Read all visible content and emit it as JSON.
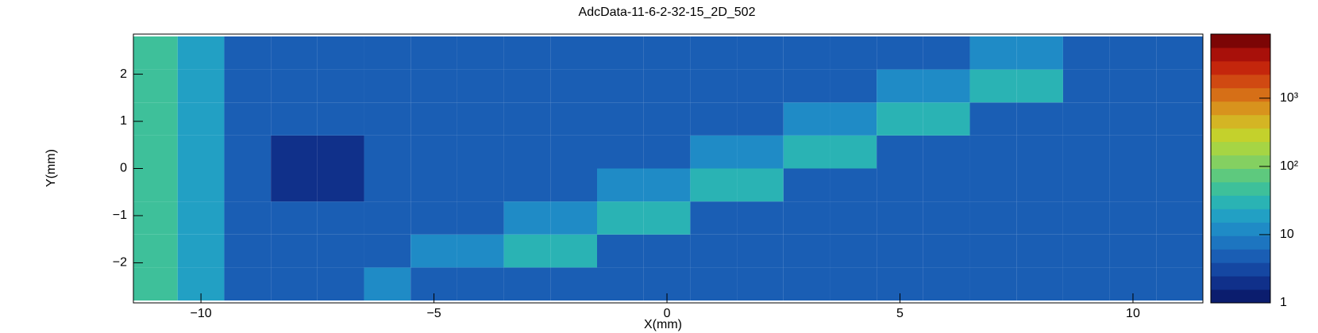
{
  "chart_data": {
    "type": "heatmap",
    "title": "AdcData-11-6-2-32-15_2D_502",
    "x_label": "X(mm)",
    "y_label": "Y(mm)",
    "xbins": [
      -11.5,
      -10.5,
      -9.5,
      -8.5,
      -7.5,
      -6.5,
      -5.5,
      -4.5,
      -3.5,
      -2.5,
      -1.5,
      -0.5,
      0.5,
      1.5,
      2.5,
      3.5,
      4.5,
      5.5,
      6.5,
      7.5,
      8.5,
      9.5,
      10.5,
      11.5
    ],
    "ybins": [
      -2.8,
      -2.1,
      -1.4,
      -0.7,
      0,
      0.7,
      1.4,
      2.1,
      2.8
    ],
    "z": [
      [
        40,
        22,
        6,
        6,
        6,
        15,
        6,
        6,
        6,
        6,
        6,
        6,
        6,
        6,
        6,
        6,
        6,
        6,
        6,
        6,
        6,
        6,
        6
      ],
      [
        40,
        22,
        6,
        6,
        6,
        6,
        15,
        15,
        30,
        30,
        6,
        6,
        6,
        6,
        6,
        6,
        6,
        6,
        6,
        6,
        6,
        6,
        6
      ],
      [
        40,
        22,
        6,
        4,
        4,
        6,
        6,
        6,
        15,
        15,
        30,
        30,
        6,
        6,
        6,
        6,
        6,
        6,
        6,
        6,
        6,
        6,
        6
      ],
      [
        40,
        22,
        6,
        2,
        2,
        6,
        6,
        6,
        6,
        6,
        15,
        15,
        30,
        30,
        6,
        6,
        6,
        6,
        6,
        6,
        6,
        6,
        6
      ],
      [
        40,
        22,
        6,
        2,
        2,
        6,
        6,
        6,
        6,
        6,
        6,
        6,
        15,
        15,
        30,
        30,
        6,
        6,
        6,
        6,
        6,
        6,
        6
      ],
      [
        40,
        22,
        6,
        4,
        4,
        6,
        6,
        6,
        6,
        6,
        6,
        6,
        6,
        6,
        15,
        15,
        30,
        30,
        6,
        6,
        6,
        6,
        6
      ],
      [
        40,
        22,
        6,
        6,
        6,
        6,
        6,
        6,
        6,
        6,
        6,
        6,
        6,
        6,
        6,
        6,
        15,
        15,
        30,
        30,
        6,
        6,
        6
      ],
      [
        40,
        22,
        6,
        6,
        6,
        6,
        6,
        6,
        6,
        6,
        6,
        6,
        6,
        6,
        6,
        6,
        6,
        6,
        15,
        15,
        6,
        6,
        6
      ]
    ],
    "xlim": [
      -11.45,
      11.5
    ],
    "ylim": [
      -2.85,
      2.85
    ],
    "xticks": [
      {
        "value": -10,
        "label": "−10"
      },
      {
        "value": -5,
        "label": "−5"
      },
      0,
      5,
      10
    ],
    "yticks": [
      {
        "value": -2,
        "label": "−2"
      },
      {
        "value": -1,
        "label": "−1"
      },
      0,
      1,
      2
    ],
    "zlim": [
      1,
      8700
    ],
    "zticks": [
      1,
      10,
      {
        "value": 100,
        "label": "10²"
      },
      {
        "value": 1000,
        "label": "10³"
      }
    ],
    "zlog": true,
    "palette": [
      "#0b1d6e",
      "#10308a",
      "#1547a2",
      "#1a5eb4",
      "#1d75c0",
      "#1f8bc6",
      "#22a0c4",
      "#2ab3b4",
      "#3ec09a",
      "#5ec97e",
      "#84d061",
      "#a6d544",
      "#c4d12c",
      "#d4b524",
      "#d8931d",
      "#d66f17",
      "#d04912",
      "#c4260c",
      "#a8100a",
      "#7c0505"
    ]
  }
}
